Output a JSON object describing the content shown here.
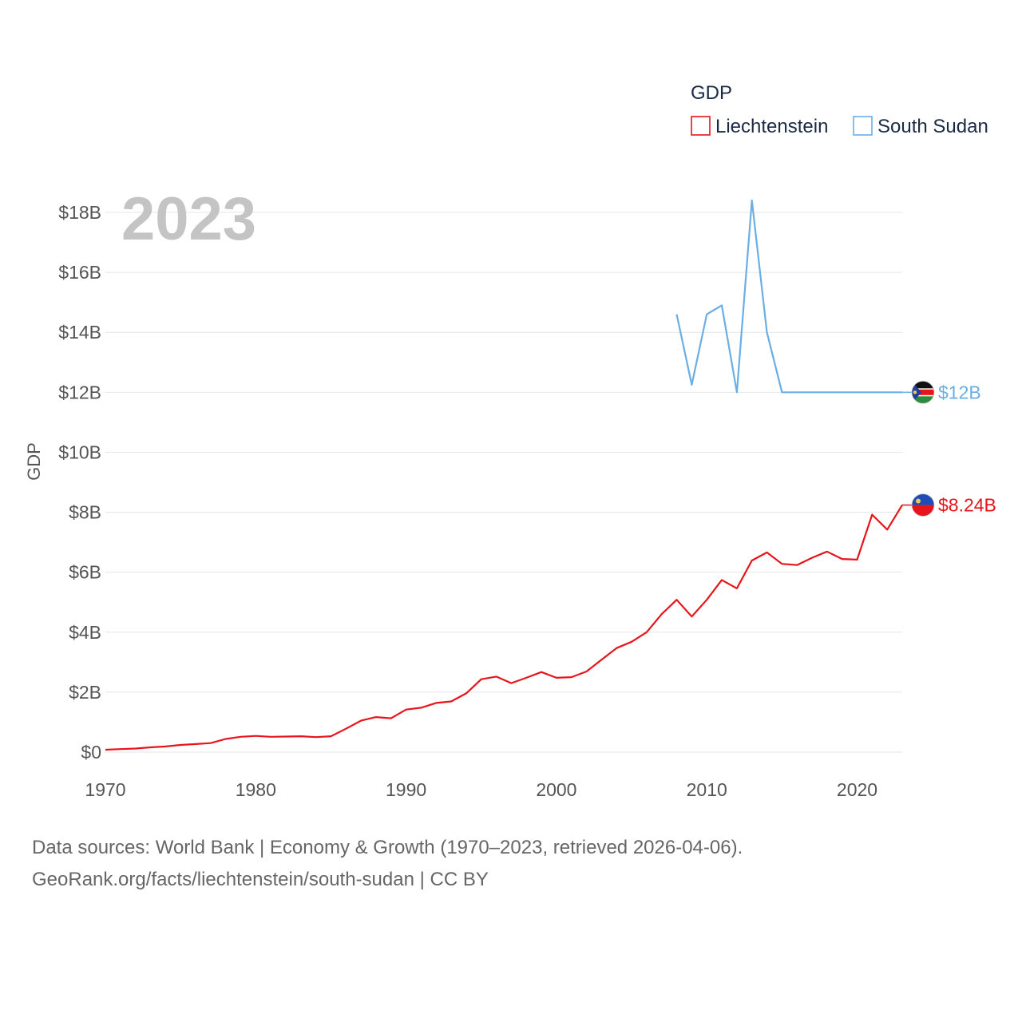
{
  "chart_data": {
    "type": "line",
    "year_label": "2023",
    "legend_title": "GDP",
    "ylabel": "GDP",
    "xlim": [
      1970,
      2023
    ],
    "ylim": [
      0,
      18
    ],
    "x_ticks": [
      1970,
      1980,
      1990,
      2000,
      2010,
      2020
    ],
    "y_ticks": [
      0,
      2,
      4,
      6,
      8,
      10,
      12,
      14,
      16,
      18
    ],
    "y_tick_labels": [
      "$0",
      "$2B",
      "$4B",
      "$6B",
      "$8B",
      "$10B",
      "$12B",
      "$14B",
      "$16B",
      "$18B"
    ],
    "unit": "billions USD",
    "grid": true,
    "series": [
      {
        "name": "Liechtenstein",
        "color": "#e8141c",
        "end_label": "$8.24B",
        "flag_icon": "liechtenstein-flag-icon",
        "x": [
          1970,
          1971,
          1972,
          1973,
          1974,
          1975,
          1976,
          1977,
          1978,
          1979,
          1980,
          1981,
          1982,
          1983,
          1984,
          1985,
          1986,
          1987,
          1988,
          1989,
          1990,
          1991,
          1992,
          1993,
          1994,
          1995,
          1996,
          1997,
          1998,
          1999,
          2000,
          2001,
          2002,
          2003,
          2004,
          2005,
          2006,
          2007,
          2008,
          2009,
          2010,
          2011,
          2012,
          2013,
          2014,
          2015,
          2016,
          2017,
          2018,
          2019,
          2020,
          2021,
          2022,
          2023
        ],
        "values": [
          0.08,
          0.1,
          0.12,
          0.16,
          0.19,
          0.24,
          0.27,
          0.3,
          0.44,
          0.51,
          0.54,
          0.51,
          0.52,
          0.53,
          0.5,
          0.53,
          0.78,
          1.05,
          1.17,
          1.13,
          1.42,
          1.48,
          1.64,
          1.69,
          1.96,
          2.43,
          2.52,
          2.3,
          2.48,
          2.67,
          2.48,
          2.5,
          2.69,
          3.08,
          3.47,
          3.68,
          4.0,
          4.6,
          5.08,
          4.52,
          5.08,
          5.74,
          5.46,
          6.39,
          6.66,
          6.28,
          6.24,
          6.48,
          6.69,
          6.44,
          6.42,
          7.92,
          7.42,
          8.24
        ]
      },
      {
        "name": "South Sudan",
        "color": "#6aaee6",
        "end_label": "$12B",
        "flag_icon": "south-sudan-flag-icon",
        "x": [
          2008,
          2009,
          2010,
          2011,
          2012,
          2013,
          2014,
          2015,
          2016,
          2017,
          2018,
          2019,
          2020,
          2021,
          2022,
          2023
        ],
        "values": [
          14.6,
          12.25,
          14.6,
          14.9,
          12.0,
          18.4,
          14.0,
          12.0,
          12.0,
          12.0,
          12.0,
          12.0,
          12.0,
          12.0,
          12.0,
          12.0
        ]
      }
    ]
  },
  "footer": {
    "line1": "Data sources: World Bank | Economy & Growth (1970–2023, retrieved 2026-04-06).",
    "line2": "GeoRank.org/facts/liechtenstein/south-sudan | CC BY"
  }
}
